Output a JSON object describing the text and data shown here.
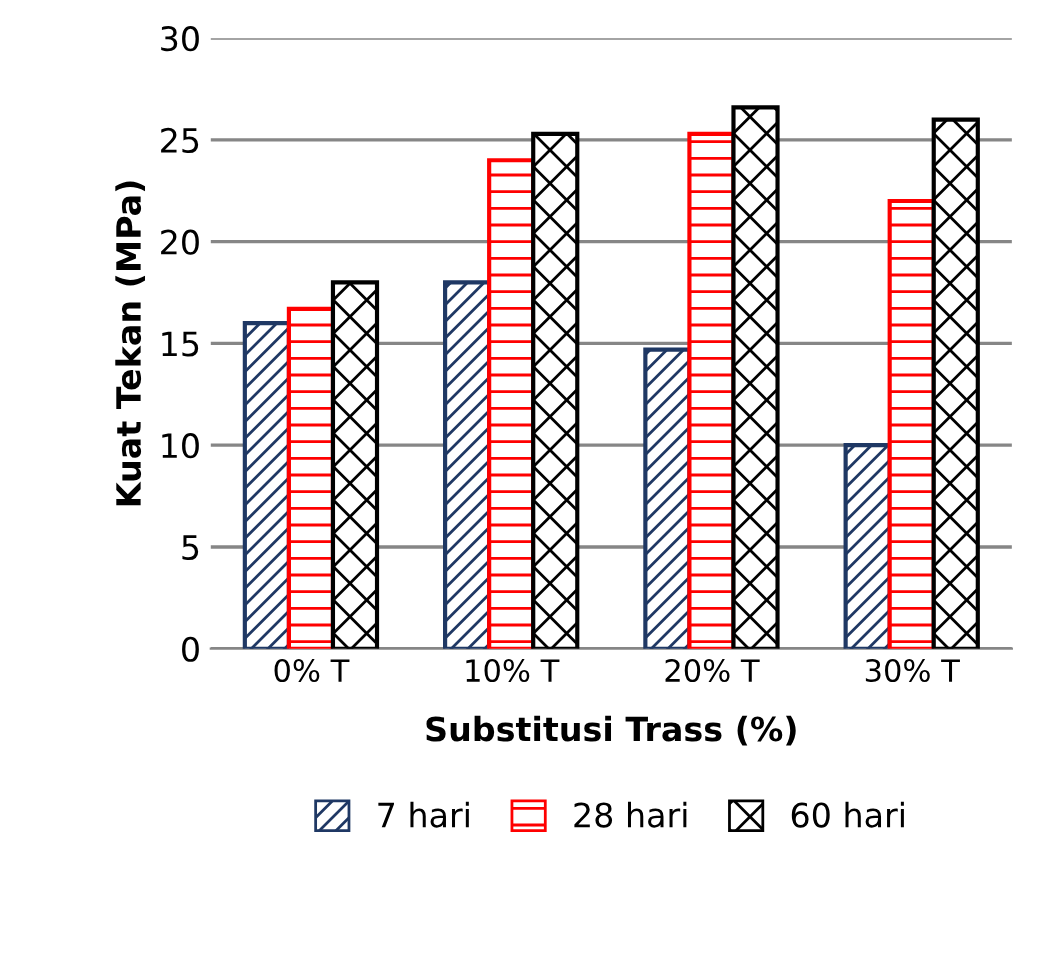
{
  "chart_data": {
    "type": "bar",
    "xlabel": "Substitusi Trass (%)",
    "ylabel": "Kuat Tekan (MPa)",
    "categories": [
      "0% T",
      "10% T",
      "20% T",
      "30% T"
    ],
    "series": [
      {
        "name": "7 hari",
        "color": "#1f3864",
        "values": [
          16,
          18,
          14.7,
          10
        ]
      },
      {
        "name": "28 hari",
        "color": "#ff0000",
        "values": [
          16.7,
          24,
          25.3,
          22
        ]
      },
      {
        "name": "60 hari",
        "color": "#000000",
        "values": [
          18,
          25.3,
          26.6,
          26
        ]
      }
    ],
    "ylim": [
      0,
      30
    ],
    "yticks": [
      0,
      5,
      10,
      15,
      20,
      25,
      30
    ],
    "grid": "y",
    "legend": "bottom"
  }
}
